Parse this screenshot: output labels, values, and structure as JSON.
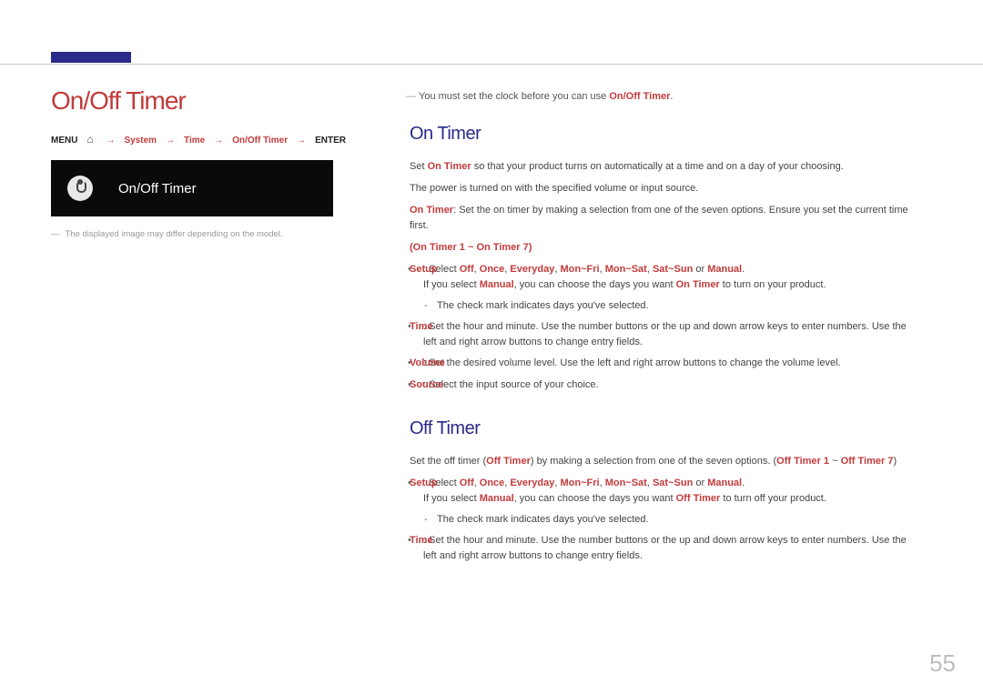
{
  "colors": {
    "accent": "#c23b3b",
    "heading": "#2a2a8a",
    "text": "#444444",
    "muted": "#999999",
    "bg": "#ffffff"
  },
  "left": {
    "title": "On/Off Timer",
    "breadcrumb": {
      "menu": "MENU",
      "path1": "System",
      "arrow": "→",
      "path2": "Time",
      "path3": "On/Off Timer",
      "enter": "ENTER"
    },
    "screenshot_label": "On/Off Timer",
    "note": "The displayed image may differ depending on the model."
  },
  "right": {
    "info": "You must set the clock before you can use",
    "info_red": "On/Off Timer",
    "on": {
      "heading": "On Timer",
      "para1a": "Set",
      "para1b": "On Timer",
      "para1c": "so that your product turns on automatically at a time and on a day of your choosing.",
      "para2": "The power is turned on with the specified volume or input source.",
      "para3a": "On Timer",
      "para3b": ": Set the on timer by making a selection from one of the seven options. Ensure you set the current time first.",
      "range": "(On Timer 1 ~ On Timer 7)",
      "setup": {
        "lead": "Setup",
        "text1": ": Select",
        "o1": "Off",
        "o2": "Once",
        "o3": "Everyday",
        "o4": "Mon~Fri",
        "o5": "Mon~Sat",
        "o6": "Sat~Sun",
        "o7": "Manual",
        "or": "or",
        "line2a": "If you select",
        "line2b": "Manual",
        "line2c": ", you can choose the days you want",
        "line2d": "On Timer",
        "line2e": "to turn on your product.",
        "sub": "The check mark indicates days you've selected."
      },
      "time": {
        "lead": "Time",
        "text": ": Set the hour and minute. Use the number buttons or the up and down arrow keys to enter numbers. Use the left and right arrow buttons to change entry fields."
      },
      "volume": {
        "lead": "Volume",
        "text": ": Set the desired volume level. Use the left and right arrow buttons to change the volume level."
      },
      "source": {
        "lead": "Source",
        "text": ": Select the input source of your choice."
      }
    },
    "off": {
      "heading": "Off Timer",
      "para1a": "Set the off timer (",
      "para1b": "Off Timer",
      "para1c": ") by making a selection from one of the seven options. (",
      "para1d": "Off Timer 1",
      "para1e": " ~ ",
      "para1f": "Off Timer 7",
      "para1g": ")",
      "setup": {
        "lead": "Setup",
        "text1": ": Select",
        "o1": "Off",
        "o2": "Once",
        "o3": "Everyday",
        "o4": "Mon~Fri",
        "o5": "Mon~Sat",
        "o6": "Sat~Sun",
        "o7": "Manual",
        "or": "or",
        "line2a": "If you select",
        "line2b": "Manual",
        "line2c": ", you can choose the days you want",
        "line2d": "Off Timer",
        "line2e": "to turn off your product.",
        "sub": "The check mark indicates days you've selected."
      },
      "time": {
        "lead": "Time",
        "text": ": Set the hour and minute. Use the number buttons or the up and down arrow keys to enter numbers. Use the left and right arrow buttons to change entry fields."
      }
    }
  },
  "page": "55"
}
